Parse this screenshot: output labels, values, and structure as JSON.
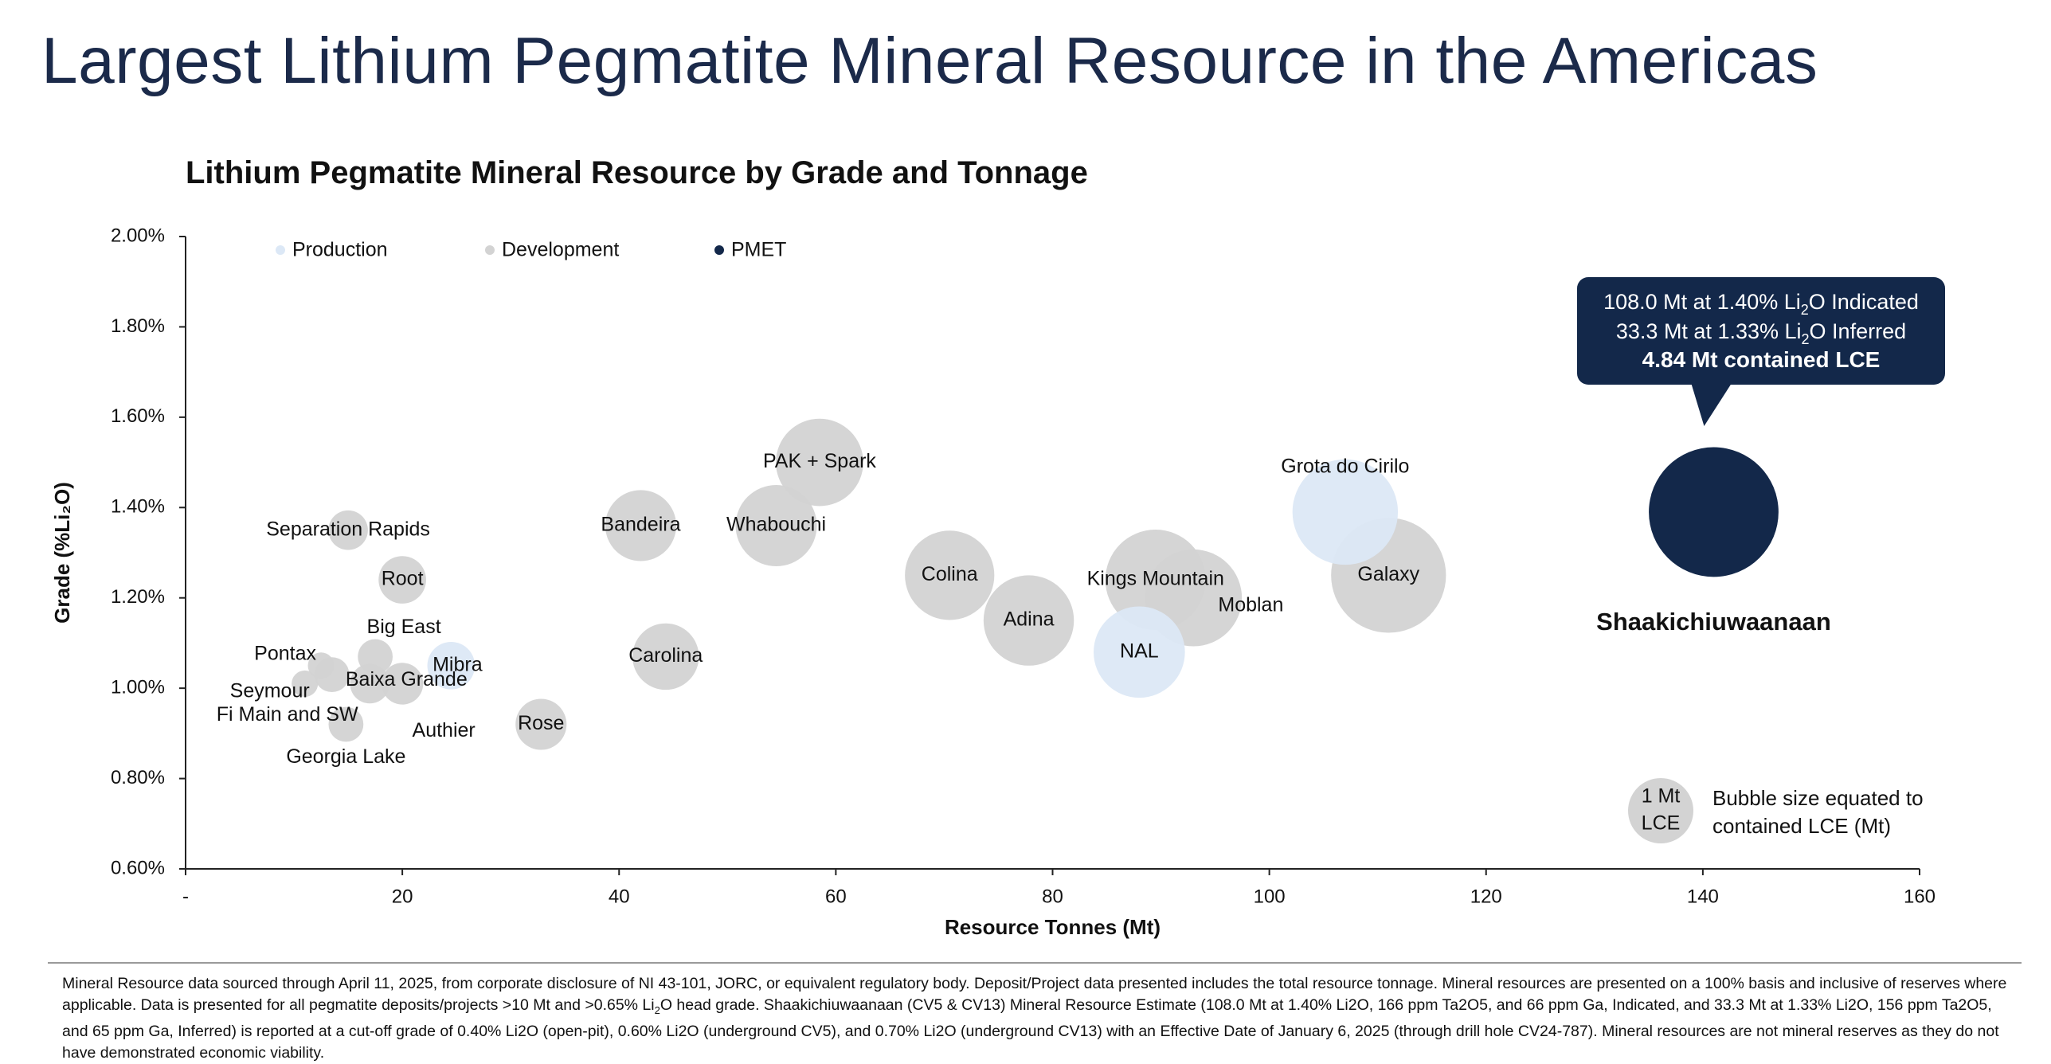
{
  "page_title": "Largest Lithium Pegmatite Mineral Resource in the Americas",
  "chart_data": {
    "type": "scatter",
    "subtype": "bubble",
    "title": "Lithium Pegmatite Mineral Resource by Grade and Tonnage",
    "xlabel": "Resource Tonnes (Mt)",
    "ylabel": "Grade (%Li₂O)",
    "xlim": [
      0,
      160
    ],
    "ylim": [
      0.6,
      2.0
    ],
    "x_ticks": [
      {
        "value": 0,
        "label": "-"
      },
      {
        "value": 20,
        "label": "20"
      },
      {
        "value": 40,
        "label": "40"
      },
      {
        "value": 60,
        "label": "60"
      },
      {
        "value": 80,
        "label": "80"
      },
      {
        "value": 100,
        "label": "100"
      },
      {
        "value": 120,
        "label": "120"
      },
      {
        "value": 140,
        "label": "140"
      },
      {
        "value": 160,
        "label": "160"
      }
    ],
    "y_ticks": [
      {
        "value": 0.6,
        "label": "0.60%"
      },
      {
        "value": 0.8,
        "label": "0.80%"
      },
      {
        "value": 1.0,
        "label": "1.00%"
      },
      {
        "value": 1.2,
        "label": "1.20%"
      },
      {
        "value": 1.4,
        "label": "1.40%"
      },
      {
        "value": 1.6,
        "label": "1.60%"
      },
      {
        "value": 1.8,
        "label": "1.80%"
      },
      {
        "value": 2.0,
        "label": "2.00%"
      }
    ],
    "grid": false,
    "legend": {
      "placement": "top-left",
      "entries": [
        {
          "name": "Production",
          "color": "#dce8f6"
        },
        {
          "name": "Development",
          "color": "#d3d3d3"
        },
        {
          "name": "PMET",
          "color": "#13284a"
        }
      ]
    },
    "points": [
      {
        "name": "Grota do Cirilo",
        "x": 107,
        "y": 1.39,
        "lce": 3.2,
        "category": "Production",
        "label_dx": 0,
        "label_dy": -56
      },
      {
        "name": "NAL",
        "x": 88,
        "y": 1.08,
        "lce": 2.4,
        "category": "Production",
        "label_dx": 0,
        "label_dy": 0
      },
      {
        "name": "Mibra",
        "x": 24.5,
        "y": 1.05,
        "lce": 0.65,
        "category": "Production",
        "label_dx": 8,
        "label_dy": 0
      },
      {
        "name": "PAK + Spark",
        "x": 58.5,
        "y": 1.5,
        "lce": 2.2,
        "category": "Development",
        "label_dx": 0,
        "label_dy": 0
      },
      {
        "name": "Whabouchi",
        "x": 54.5,
        "y": 1.36,
        "lce": 1.9,
        "category": "Development",
        "label_dx": 0,
        "label_dy": 0
      },
      {
        "name": "Bandeira",
        "x": 42,
        "y": 1.36,
        "lce": 1.45,
        "category": "Development",
        "label_dx": 0,
        "label_dy": 0
      },
      {
        "name": "Colina",
        "x": 70.5,
        "y": 1.25,
        "lce": 2.3,
        "category": "Development",
        "label_dx": 0,
        "label_dy": 0
      },
      {
        "name": "Adina",
        "x": 77.8,
        "y": 1.15,
        "lce": 2.35,
        "category": "Development",
        "label_dx": 0,
        "label_dy": 0
      },
      {
        "name": "Moblan",
        "x": 93,
        "y": 1.2,
        "lce": 2.7,
        "category": "Development",
        "label_dx": 72,
        "label_dy": 10
      },
      {
        "name": "Kings Mountain",
        "x": 89.5,
        "y": 1.24,
        "lce": 2.9,
        "category": "Development",
        "label_dx": 0,
        "label_dy": 0
      },
      {
        "name": "Galaxy",
        "x": 111,
        "y": 1.25,
        "lce": 3.8,
        "category": "Development",
        "label_dx": 0,
        "label_dy": 0
      },
      {
        "name": "Carolina",
        "x": 44.3,
        "y": 1.07,
        "lce": 1.27,
        "category": "Development",
        "label_dx": 0,
        "label_dy": 0
      },
      {
        "name": "Rose",
        "x": 32.8,
        "y": 0.92,
        "lce": 0.75,
        "category": "Development",
        "label_dx": 0,
        "label_dy": 0
      },
      {
        "name": "Root",
        "x": 20,
        "y": 1.24,
        "lce": 0.65,
        "category": "Development",
        "label_dx": 0,
        "label_dy": 0
      },
      {
        "name": "Separation Rapids",
        "x": 15,
        "y": 1.35,
        "lce": 0.45,
        "category": "Development",
        "label_dx": 0,
        "label_dy": 0
      },
      {
        "name": "Big East",
        "x": 17.5,
        "y": 1.07,
        "lce": 0.35,
        "category": "Development",
        "label_dx": 36,
        "label_dy": -36
      },
      {
        "name": "Pontax",
        "x": 12.5,
        "y": 1.05,
        "lce": 0.2,
        "category": "Development",
        "label_dx": -45,
        "label_dy": -14
      },
      {
        "name": "Seymour",
        "x": 13.5,
        "y": 1.03,
        "lce": 0.35,
        "category": "Development",
        "label_dx": -78,
        "label_dy": 22
      },
      {
        "name": "Baixa Grande",
        "x": 17,
        "y": 1.01,
        "lce": 0.45,
        "category": "Development",
        "label_dx": 46,
        "label_dy": -4
      },
      {
        "name": "Authier",
        "x": 20,
        "y": 1.01,
        "lce": 0.5,
        "category": "Development",
        "label_dx": 52,
        "label_dy": 60
      },
      {
        "name": "Fi Main and SW",
        "x": 11,
        "y": 1.01,
        "lce": 0.2,
        "category": "Development",
        "label_dx": -22,
        "label_dy": 40
      },
      {
        "name": "Georgia Lake",
        "x": 14.8,
        "y": 0.92,
        "lce": 0.35,
        "category": "Development",
        "label_dx": 0,
        "label_dy": 42
      },
      {
        "name": "Shaakichiuwaanaan",
        "x": 141,
        "y": 1.39,
        "lce": 4.84,
        "category": "PMET",
        "label_dx": 0,
        "label_dy": 140
      }
    ],
    "callout": {
      "line1_pre": "108.0 Mt at 1.40% Li",
      "line1_sub": "2",
      "line1_post": "O Indicated",
      "line2_pre": "33.3 Mt at 1.33% Li",
      "line2_sub": "2",
      "line2_post": "O Inferred",
      "line3": "4.84 Mt contained LCE",
      "color": "#13284a"
    },
    "size_key": {
      "bubble_line1": "1 Mt",
      "bubble_line2": "LCE",
      "lce": 1,
      "text_line1": "Bubble size equated to",
      "text_line2": "contained LCE (Mt)"
    }
  },
  "footnote": {
    "part1": "Mineral Resource data sourced through April 11, 2025, from corporate disclosure of NI 43-101, JORC, or equivalent regulatory body. Deposit/Project data presented includes the total resource tonnage. Mineral resources are presented on a 100% basis and inclusive of reserves where applicable. Data is presented for all pegmatite deposits/projects >10 Mt and >0.65% Li",
    "sub": "2",
    "part2": "O head grade. Shaakichiuwaanaan (CV5 & CV13) Mineral Resource Estimate (108.0 Mt at 1.40% Li2O, 166 ppm Ta2O5, and 66 ppm Ga, Indicated, and 33.3 Mt at 1.33% Li2O, 156 ppm Ta2O5, and 65 ppm Ga, Inferred) is reported at a cut-off grade of 0.40% Li2O (open-pit), 0.60% Li2O (underground CV5), and 0.70% Li2O (underground CV13) with an Effective Date of January 6, 2025 (through drill hole CV24-787). Mineral resources are not mineral reserves as they do not have demonstrated economic viability."
  }
}
